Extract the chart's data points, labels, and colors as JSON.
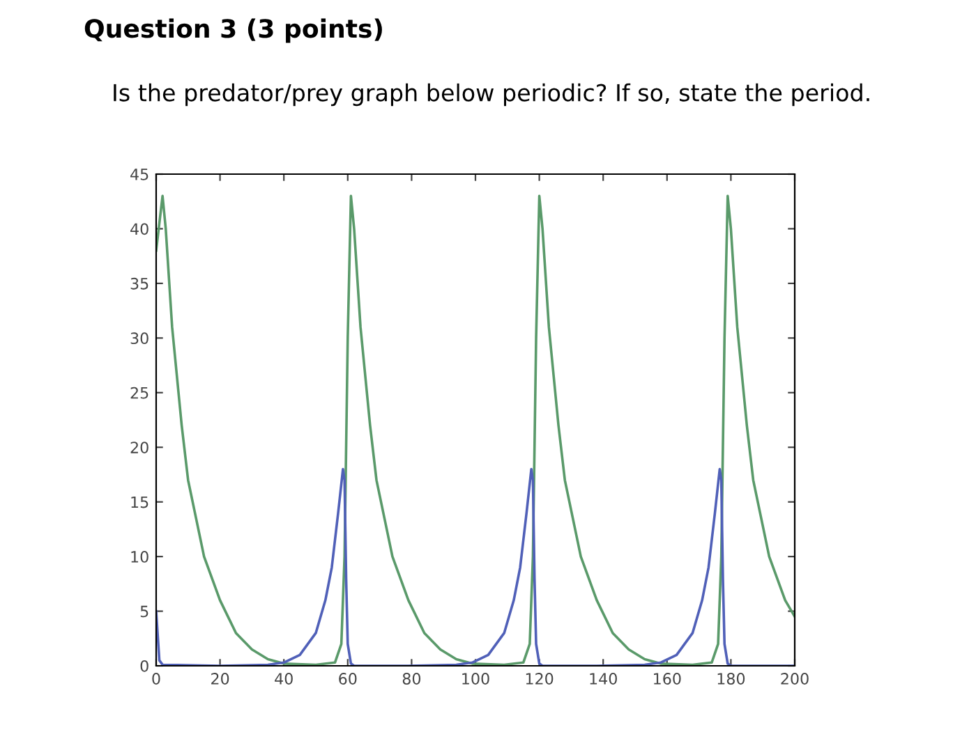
{
  "chart_data": {
    "type": "line",
    "title": "Question 3 (3 points)",
    "subtitle": "Is the predator/prey graph below periodic? If so, state the period.",
    "xlim": [
      0,
      200
    ],
    "ylim": [
      0,
      45
    ],
    "xticks": [
      0,
      20,
      40,
      60,
      80,
      100,
      120,
      140,
      160,
      180,
      200
    ],
    "yticks": [
      0,
      5,
      10,
      15,
      20,
      25,
      30,
      35,
      40,
      45
    ],
    "grid": false,
    "legend": false,
    "line_style": "solid",
    "marker": "none",
    "series": [
      {
        "color": "#5a9a6a",
        "x": [
          0,
          2,
          3,
          5,
          8,
          10,
          15,
          20,
          25,
          30,
          35,
          40,
          50,
          56,
          58,
          59,
          60,
          61,
          62,
          64,
          67,
          69,
          74,
          79,
          84,
          89,
          94,
          99,
          109,
          115,
          117,
          118,
          119,
          120,
          121,
          123,
          126,
          128,
          133,
          138,
          143,
          148,
          153,
          158,
          168,
          174,
          176,
          177,
          178,
          179,
          180,
          182,
          185,
          187,
          192,
          197,
          200
        ],
        "values": [
          38,
          43,
          40,
          31,
          22,
          17,
          10,
          6,
          3,
          1.5,
          0.6,
          0.2,
          0.1,
          0.3,
          2,
          10,
          30,
          43,
          40,
          31,
          22,
          17,
          10,
          6,
          3,
          1.5,
          0.6,
          0.2,
          0.1,
          0.3,
          2,
          10,
          30,
          43,
          40,
          31,
          22,
          17,
          10,
          6,
          3,
          1.5,
          0.6,
          0.2,
          0.1,
          0.3,
          2,
          10,
          30,
          43,
          40,
          31,
          22,
          17,
          10,
          6,
          4.5
        ]
      },
      {
        "color": "#5060b8",
        "x": [
          0,
          1,
          2,
          20,
          35,
          40,
          45,
          50,
          53,
          55,
          57,
          58.5,
          59,
          59.5,
          60,
          61,
          62,
          79,
          94,
          99,
          104,
          109,
          112,
          114,
          116,
          117.5,
          118,
          118.5,
          119,
          120,
          121,
          138,
          153,
          158,
          163,
          168,
          171,
          173,
          175,
          176.5,
          177,
          177.5,
          178,
          179,
          180,
          200
        ],
        "values": [
          5,
          0.5,
          0.1,
          0,
          0.1,
          0.3,
          1,
          3,
          6,
          9,
          14,
          18,
          17,
          8,
          2,
          0.2,
          0,
          0,
          0.1,
          0.3,
          1,
          3,
          6,
          9,
          14,
          18,
          17,
          8,
          2,
          0.2,
          0,
          0,
          0.1,
          0.3,
          1,
          3,
          6,
          9,
          14,
          18,
          17,
          8,
          2,
          0.2,
          0,
          0
        ]
      }
    ]
  }
}
